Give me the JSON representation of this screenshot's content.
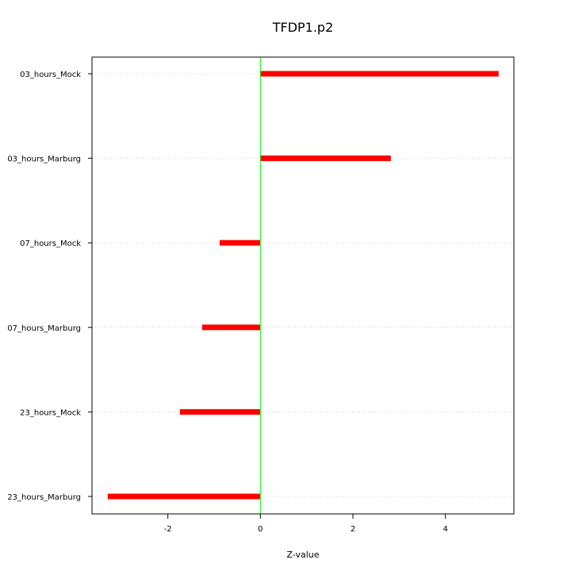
{
  "chart_data": {
    "type": "bar",
    "orientation": "horizontal",
    "title": "TFDP1.p2",
    "xlabel": "Z-value",
    "ylabel": "",
    "categories": [
      "03_hours_Mock",
      "03_hours_Marburg",
      "07_hours_Mock",
      "07_hours_Marburg",
      "23_hours_Mock",
      "23_hours_Marburg"
    ],
    "values": [
      5.15,
      2.82,
      -0.88,
      -1.26,
      -1.74,
      -3.3
    ],
    "xlim": [
      -3.64,
      5.48
    ],
    "xticks": [
      -2,
      0,
      2,
      4
    ],
    "xtick_labels": [
      "-2",
      "0",
      "2",
      "4"
    ],
    "reference_line": 0,
    "grid": "horizontal dotted",
    "colors": {
      "bar": "#ff0000",
      "reference_line": "#00ff00",
      "grid": "#cccccc",
      "frame": "#000000"
    }
  }
}
